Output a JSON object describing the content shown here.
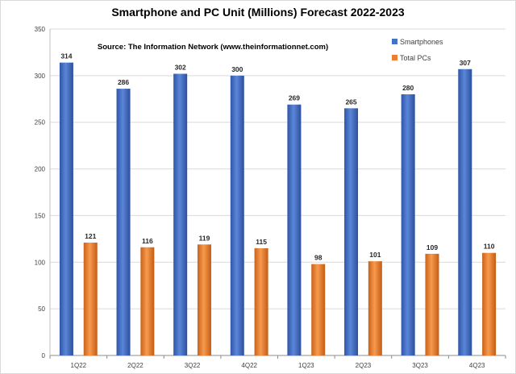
{
  "chart_data": {
    "type": "bar",
    "title": "Smartphone and PC Unit (Millions) Forecast 2022-2023",
    "annotation": "Source: The Information Network (www.theinformationnet.com)",
    "xlabel": "",
    "ylabel": "",
    "categories": [
      "1Q22",
      "2Q22",
      "3Q22",
      "4Q22",
      "1Q23",
      "2Q23",
      "3Q23",
      "4Q23"
    ],
    "series": [
      {
        "name": "Smartphones",
        "values": [
          314,
          286,
          302,
          300,
          269,
          265,
          280,
          307
        ],
        "color": "#4472c4"
      },
      {
        "name": "Total PCs",
        "values": [
          121,
          116,
          119,
          115,
          98,
          101,
          109,
          110
        ],
        "color": "#ed7d31"
      }
    ],
    "ylim": [
      0,
      350
    ],
    "yticks": [
      0,
      50,
      100,
      150,
      200,
      250,
      300,
      350
    ],
    "grid": true,
    "legend_position": "top-right",
    "data_labels": true
  }
}
